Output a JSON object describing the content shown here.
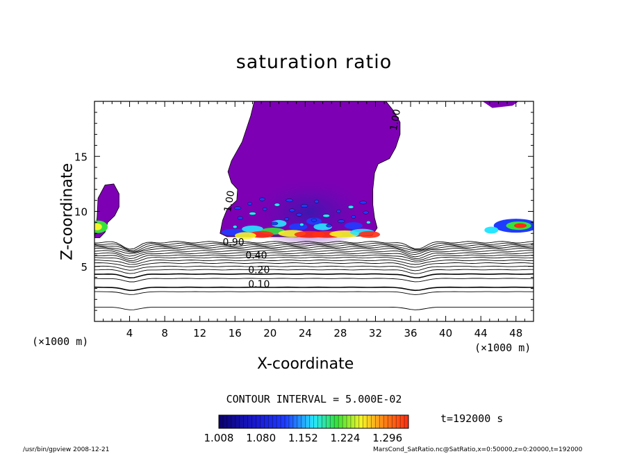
{
  "chart_data": {
    "type": "heatmap",
    "title": "saturation ratio",
    "xlabel": "X-coordinate",
    "ylabel": "Z-coordinate",
    "x_unit": "(×1000 m)",
    "y_unit": "",
    "xlim": [
      0,
      50
    ],
    "ylim": [
      0,
      20
    ],
    "x_ticks": [
      4,
      8,
      12,
      16,
      20,
      24,
      28,
      32,
      36,
      40,
      44,
      48
    ],
    "y_ticks": [
      5,
      10,
      15
    ],
    "contour_labels": [
      {
        "text": "0.10",
        "x": 17.5,
        "y": 3.1
      },
      {
        "text": "0.20",
        "x": 17.5,
        "y": 4.4
      },
      {
        "text": "0.40",
        "x": 17.2,
        "y": 5.7
      },
      {
        "text": "0.90",
        "x": 14.6,
        "y": 6.9
      },
      {
        "text": "1.00",
        "x": 15.5,
        "y": 9.9
      },
      {
        "text": "1.00",
        "x": 34.4,
        "y": 17.3
      }
    ],
    "contour_interval": "CONTOUR INTERVAL = 5.000E-02",
    "colorbar_labels": [
      "1.008",
      "1.080",
      "1.152",
      "1.224",
      "1.296"
    ],
    "colorbar_range": [
      1.008,
      1.332
    ],
    "grid": false
  },
  "time_label": "t=192000 s",
  "footer": {
    "left": "/usr/bin/gpview  2008-12-21",
    "right": "MarsCond_SatRatio.nc@SatRatio,x=0:50000,z=0:20000,t=192000"
  },
  "colors": {
    "purple": "#7e00b4",
    "deep_purple": "#6a00a0",
    "low": "#0a006e",
    "blue": "#1e3cff",
    "cyan": "#28e6ff",
    "green": "#36e23c",
    "yellow": "#f5f528",
    "red": "#ff2d14"
  }
}
